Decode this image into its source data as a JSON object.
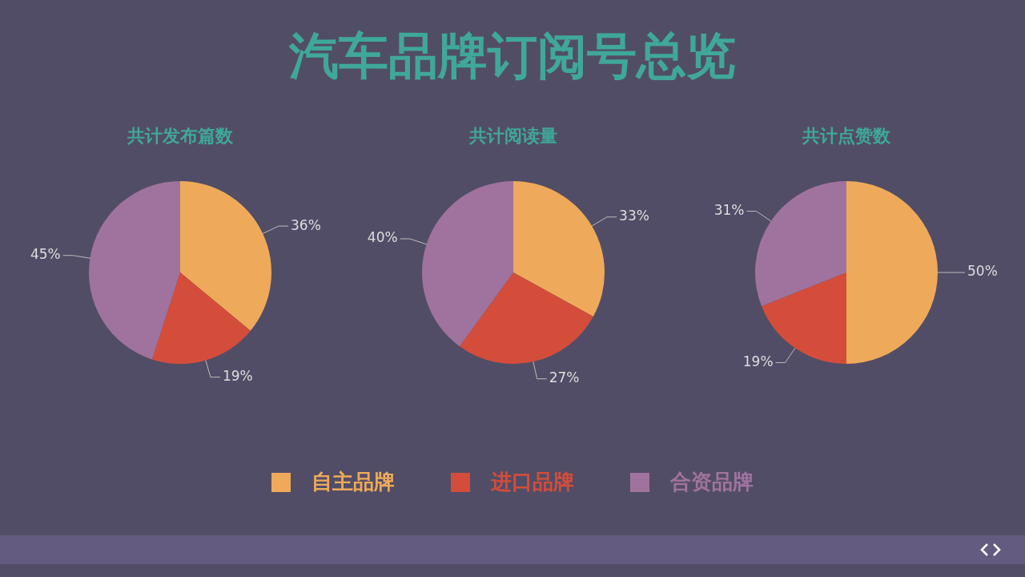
{
  "chart_data": [
    {
      "type": "other",
      "title": "汽车品牌订阅号总览"
    },
    {
      "type": "pie",
      "title": "共计发布篇数",
      "categories": [
        "自主品牌",
        "进口品牌",
        "合资品牌"
      ],
      "values": [
        36,
        19,
        45
      ],
      "colors": [
        "#eeaa5a",
        "#d44d3a",
        "#a0739e"
      ],
      "value_labels": [
        "36%",
        "19%",
        "45%"
      ],
      "legend": "bottom"
    },
    {
      "type": "pie",
      "title": "共计阅读量",
      "categories": [
        null,
        null,
        null
      ],
      "values": [
        33,
        27,
        40
      ],
      "colors": [
        "#eeaa5a",
        "#d44d3a",
        "#a0739e"
      ],
      "value_labels": [
        "33%",
        "27%",
        "40%"
      ]
    },
    {
      "type": "pie",
      "title": "共计点赞数",
      "categories": [
        null,
        null,
        null
      ],
      "values": [
        50,
        19,
        31
      ],
      "colors": [
        "#eeaa5a",
        "#d44d3a",
        "#a0739e"
      ],
      "value_labels": [
        "50%",
        "19%",
        "31%"
      ]
    }
  ]
}
